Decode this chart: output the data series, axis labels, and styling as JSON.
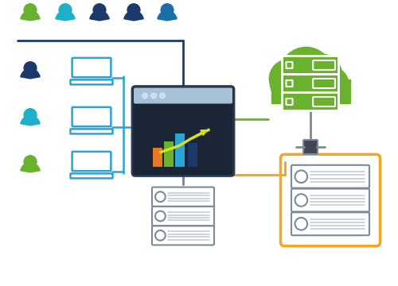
{
  "bg_color": "#ffffff",
  "green_color": "#6ab22e",
  "blue_dark": "#1b3a6b",
  "blue_mid": "#1a6fa8",
  "blue_light": "#2ba3d4",
  "teal": "#1eb0c8",
  "orange": "#f5a623",
  "gray": "#7a8a99",
  "gray_light": "#c0cdd8",
  "dark_navy": "#1a2535",
  "window_header": "#a8c0d8",
  "bar_colors": [
    "#e87722",
    "#6ab22e",
    "#2ba3d4",
    "#1b3a6b"
  ],
  "line_color": "#d4e022",
  "figsize": [
    5.0,
    3.6
  ],
  "dpi": 100,
  "cloud_color": "#6ab22e",
  "cloud_server_color": "#ffffff",
  "node_color": "#555566",
  "rack_border": "#f5a623"
}
